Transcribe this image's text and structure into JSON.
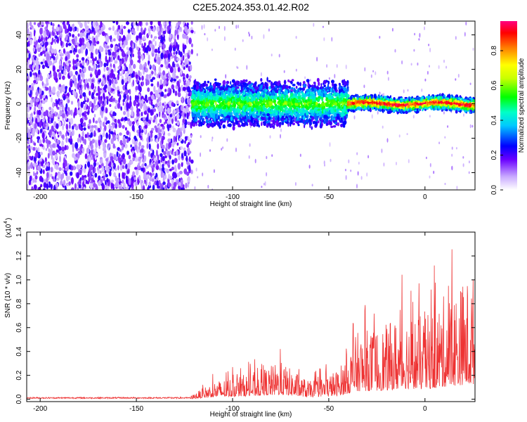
{
  "chart_data": [
    {
      "type": "heatmap",
      "title": "C2E5.2024.353.01.42.R02",
      "xlabel": "Height of straight line (km)",
      "ylabel": "Frequency (Hz)",
      "xlim": [
        -207,
        26
      ],
      "ylim": [
        -50,
        48
      ],
      "x_ticks": [
        -200,
        -150,
        -100,
        -50,
        0
      ],
      "y_ticks": [
        -40,
        -20,
        0,
        20,
        40
      ],
      "colorbar": {
        "label": "Normalized spectral amplitude",
        "range": [
          0,
          0.97
        ],
        "ticks": [
          0.0,
          0.2,
          0.4,
          0.6,
          0.8
        ],
        "tick_labels": [
          "0.0",
          "0.2",
          "0.4",
          "0.6",
          "0.8"
        ]
      },
      "regions": [
        {
          "x_range": [
            -207,
            -121
          ],
          "description": "noise",
          "level": 0.22
        },
        {
          "x_range": [
            -121,
            -40
          ],
          "description": "signal band",
          "center_hz": 0,
          "halfwidth_hz": 8,
          "level": 0.45
        },
        {
          "x_range": [
            -40,
            26
          ],
          "description": "narrow signal band",
          "center_hz": 0,
          "halfwidth_hz": 3,
          "level": 0.8
        }
      ]
    },
    {
      "type": "line",
      "xlabel": "Height of straight line (km)",
      "ylabel": "SNR (10 * v/v)",
      "y_multiplier": "(x10^4)",
      "y_multiplier_text": "(x10",
      "y_multiplier_exp": "4",
      "xlim": [
        -207,
        26
      ],
      "ylim": [
        -0.02,
        1.4
      ],
      "x_ticks": [
        -200,
        -150,
        -100,
        -50,
        0
      ],
      "y_ticks": [
        0.0,
        0.2,
        0.4,
        0.6,
        0.8,
        1.0,
        1.2,
        1.4
      ],
      "y_tick_labels": [
        "0.0",
        "0.2",
        "0.4",
        "0.6",
        "0.8",
        "1.0",
        "1.2",
        "1.4"
      ],
      "line_color": "#ee3333",
      "envelope": [
        {
          "x": -207,
          "y": 0.01
        },
        {
          "x": -122,
          "y": 0.02
        },
        {
          "x": -110,
          "y": 0.12
        },
        {
          "x": -90,
          "y": 0.18
        },
        {
          "x": -75,
          "y": 0.25
        },
        {
          "x": -60,
          "y": 0.12
        },
        {
          "x": -45,
          "y": 0.2
        },
        {
          "x": -35,
          "y": 0.45
        },
        {
          "x": -20,
          "y": 0.5
        },
        {
          "x": -10,
          "y": 0.6
        },
        {
          "x": 0,
          "y": 0.55
        },
        {
          "x": 10,
          "y": 0.7
        },
        {
          "x": 20,
          "y": 0.8
        },
        {
          "x": 26,
          "y": 0.85
        }
      ]
    }
  ]
}
